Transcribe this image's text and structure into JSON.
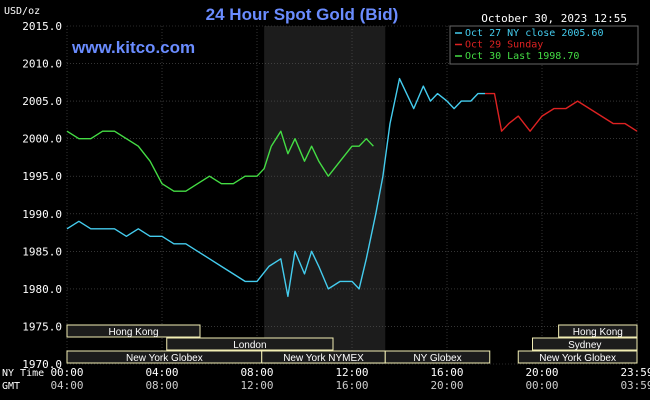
{
  "chart_data": {
    "type": "line",
    "title": "24 Hour Spot Gold (Bid)",
    "watermark": "www.kitco.com",
    "currency_label": "USD/oz",
    "timestamp": "October 30, 2023 12:55",
    "ylim": [
      1970,
      2015
    ],
    "y_ticks": [
      "2015.0",
      "2010.0",
      "2005.0",
      "2000.0",
      "1995.0",
      "1990.0",
      "1985.0",
      "1980.0",
      "1975.0",
      "1970.0"
    ],
    "xlim": [
      0,
      24
    ],
    "x_ticks_ny": [
      "00:00",
      "04:00",
      "08:00",
      "12:00",
      "16:00",
      "20:00",
      "23:59"
    ],
    "x_ticks_gmt": [
      "04:00",
      "08:00",
      "12:00",
      "16:00",
      "20:00",
      "00:00",
      "03:59"
    ],
    "x_row_labels": {
      "ny": "NY Time",
      "gmt": "GMT"
    },
    "grid": true,
    "legend_position": "top-right",
    "colors": {
      "oct27": "#44ccee",
      "oct29": "#dd2222",
      "oct30": "#44dd44",
      "text": "#ffffff",
      "title": "#6a8cff",
      "grid": "#555555",
      "session_fill": "#1c1c1c",
      "session_band": "#f2eeb4"
    },
    "series": [
      {
        "name": "Oct 27 NY close 2005.60",
        "color": "#44ccee",
        "x": [
          0,
          0.5,
          1,
          1.5,
          2,
          2.5,
          3,
          3.5,
          4,
          4.5,
          5,
          5.5,
          6,
          6.5,
          7,
          7.5,
          8,
          8.5,
          9,
          9.3,
          9.6,
          10,
          10.3,
          10.6,
          11,
          11.5,
          12,
          12.3,
          12.6,
          13,
          13.3,
          13.6,
          14,
          14.3,
          14.6,
          15,
          15.3,
          15.6,
          16,
          16.3,
          16.6,
          17,
          17.3,
          17.6
        ],
        "y": [
          1988,
          1989,
          1988,
          1988,
          1988,
          1987,
          1988,
          1987,
          1987,
          1986,
          1986,
          1985,
          1984,
          1983,
          1982,
          1981,
          1981,
          1983,
          1984,
          1979,
          1985,
          1982,
          1985,
          1983,
          1980,
          1981,
          1981,
          1980,
          1984,
          1990,
          1995,
          2002,
          2008,
          2006,
          2004,
          2007,
          2005,
          2006,
          2005,
          2004,
          2005,
          2005,
          2006,
          2006
        ]
      },
      {
        "name": "Oct 29 Sunday",
        "color": "#dd2222",
        "x": [
          17.6,
          18,
          18.3,
          18.6,
          19,
          19.5,
          20,
          20.5,
          21,
          21.5,
          22,
          22.5,
          23,
          23.5,
          24
        ],
        "y": [
          2006,
          2006,
          2001,
          2002,
          2003,
          2001,
          2003,
          2004,
          2004,
          2005,
          2004,
          2003,
          2002,
          2002,
          2001
        ]
      },
      {
        "name": "Oct 30 Last 1998.70",
        "color": "#44dd44",
        "x": [
          0,
          0.5,
          1,
          1.5,
          2,
          2.5,
          3,
          3.5,
          4,
          4.5,
          5,
          5.5,
          6,
          6.5,
          7,
          7.5,
          8,
          8.3,
          8.6,
          9,
          9.3,
          9.6,
          10,
          10.3,
          10.6,
          11,
          11.5,
          12,
          12.3,
          12.6,
          12.9
        ],
        "y": [
          2001,
          2000,
          2000,
          2001,
          2001,
          2000,
          1999,
          1997,
          1994,
          1993,
          1993,
          1994,
          1995,
          1994,
          1994,
          1995,
          1995,
          1996,
          1999,
          2001,
          1998,
          2000,
          1997,
          1999,
          1997,
          1995,
          1997,
          1999,
          1999,
          2000,
          1999
        ]
      }
    ],
    "session_rows": {
      "row1": [
        {
          "label": "Hong Kong",
          "start": 0,
          "end": 5.6
        },
        {
          "label": "Hong Kong",
          "start": 20.7,
          "end": 24
        }
      ],
      "row2": [
        {
          "label": "London",
          "start": 4.2,
          "end": 11.2
        },
        {
          "label": "Sydney",
          "start": 19.6,
          "end": 24
        }
      ],
      "row3": [
        {
          "label": "New York Globex",
          "start": 0,
          "end": 8.2
        },
        {
          "label": "New York NYMEX",
          "start": 8.2,
          "end": 13.4
        },
        {
          "label": "NY Globex",
          "start": 13.4,
          "end": 17.8
        },
        {
          "label": "New York Globex",
          "start": 19,
          "end": 24
        }
      ]
    },
    "shaded_period": {
      "start": 8.3,
      "end": 13.4
    }
  }
}
